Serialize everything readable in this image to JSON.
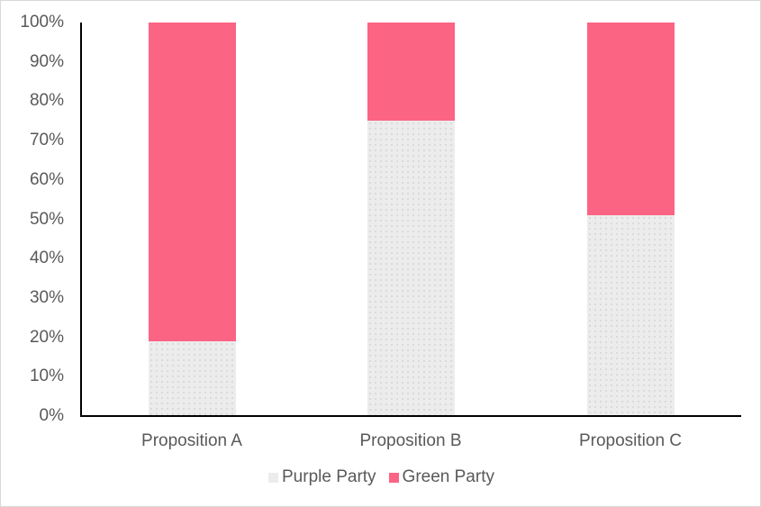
{
  "chart_data": {
    "type": "bar",
    "stacked": "100%",
    "title": "",
    "xlabel": "",
    "ylabel": "",
    "categories": [
      "Proposition A",
      "Proposition B",
      "Proposition C"
    ],
    "series": [
      {
        "name": "Purple Party",
        "color": "#ececec",
        "values": [
          19,
          75,
          51
        ]
      },
      {
        "name": "Green Party",
        "color": "#fc6484",
        "values": [
          81,
          25,
          49
        ]
      }
    ],
    "ylim": [
      0,
      100
    ],
    "yticks": [
      "0%",
      "10%",
      "20%",
      "30%",
      "40%",
      "50%",
      "60%",
      "70%",
      "80%",
      "90%",
      "100%"
    ],
    "grid": false,
    "legend_position": "bottom"
  }
}
